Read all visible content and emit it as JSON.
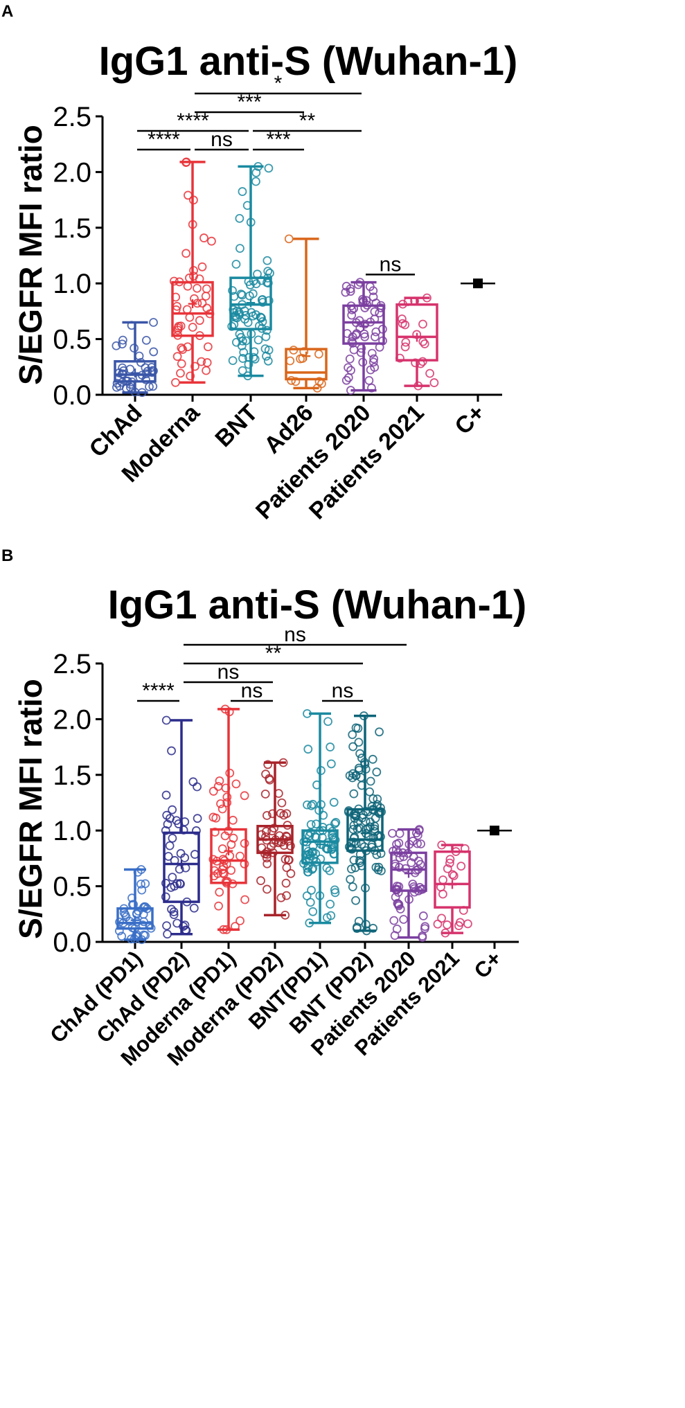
{
  "panels": [
    {
      "letter": "A",
      "title": "IgG1 anti-S (Wuhan-1)"
    },
    {
      "letter": "B",
      "title": "IgG1 anti-S (Wuhan-1)"
    }
  ],
  "chart_data": [
    {
      "type": "box",
      "title": "IgG1 anti-S (Wuhan-1)",
      "ylabel": "S/EGFR MFI ratio",
      "xlabel": "",
      "ylim": [
        0,
        2.5
      ],
      "yticks": [
        "0.0",
        "0.5",
        "1.0",
        "1.5",
        "2.0",
        "2.5"
      ],
      "categories": [
        "ChAd",
        "Moderna",
        "BNT",
        "Ad26",
        "Patients 2020",
        "Patients 2021",
        "C+"
      ],
      "colors": [
        "#3a56a8",
        "#e8343a",
        "#1a8aa0",
        "#d9661b",
        "#7b3fa0",
        "#d6336c",
        "#000000"
      ],
      "boxes": [
        {
          "min": 0.02,
          "q1": 0.12,
          "median": 0.18,
          "q3": 0.3,
          "max": 0.65,
          "mean": 0.2,
          "n": 40
        },
        {
          "min": 0.11,
          "q1": 0.53,
          "median": 0.73,
          "q3": 1.01,
          "max": 2.09,
          "mean": 0.82,
          "n": 50
        },
        {
          "min": 0.17,
          "q1": 0.59,
          "median": 0.81,
          "q3": 1.05,
          "max": 2.05,
          "mean": 0.83,
          "n": 80
        },
        {
          "min": 0.06,
          "q1": 0.14,
          "median": 0.2,
          "q3": 0.41,
          "max": 1.4,
          "mean": 0.35,
          "n": 12
        },
        {
          "min": 0.04,
          "q1": 0.46,
          "median": 0.65,
          "q3": 0.8,
          "max": 1.01,
          "mean": 0.62,
          "n": 60
        },
        {
          "min": 0.08,
          "q1": 0.31,
          "median": 0.52,
          "q3": 0.81,
          "max": 0.87,
          "mean": 0.52,
          "n": 20
        },
        {
          "min": 1.0,
          "q1": 1.0,
          "median": 1.0,
          "q3": 1.0,
          "max": 1.0,
          "mean": 1.0,
          "n": 1
        }
      ],
      "significance": [
        {
          "from": 0,
          "to": 1,
          "label": "****",
          "level": 0
        },
        {
          "from": 1,
          "to": 2,
          "label": "ns",
          "level": 0
        },
        {
          "from": 2,
          "to": 3,
          "label": "***",
          "level": 0
        },
        {
          "from": 0,
          "to": 2,
          "label": "****",
          "level": 1
        },
        {
          "from": 2,
          "to": 4,
          "label": "**",
          "level": 1
        },
        {
          "from": 1,
          "to": 3,
          "label": "***",
          "level": 2
        },
        {
          "from": 1,
          "to": 4,
          "label": "*",
          "level": 3
        },
        {
          "from": 4,
          "to": 5,
          "label": "ns",
          "level": -1
        }
      ]
    },
    {
      "type": "box",
      "title": "IgG1 anti-S (Wuhan-1)",
      "ylabel": "S/EGFR MFI ratio",
      "xlabel": "",
      "ylim": [
        0,
        2.5
      ],
      "yticks": [
        "0.0",
        "0.5",
        "1.0",
        "1.5",
        "2.0",
        "2.5"
      ],
      "categories": [
        "ChAd (PD1)",
        "ChAd (PD2)",
        "Moderna (PD1)",
        "Moderna (PD2)",
        "BNT(PD1)",
        "BNT (PD2)",
        "Patients 2020",
        "Patients 2021",
        "C+"
      ],
      "colors": [
        "#3a6fc7",
        "#2c2c8c",
        "#e8343a",
        "#a8232a",
        "#1a8aa0",
        "#0e6478",
        "#7b3fa0",
        "#d6336c",
        "#000000"
      ],
      "boxes": [
        {
          "min": 0.02,
          "q1": 0.12,
          "median": 0.17,
          "q3": 0.3,
          "max": 0.65,
          "mean": 0.2,
          "n": 40
        },
        {
          "min": 0.07,
          "q1": 0.36,
          "median": 0.7,
          "q3": 0.98,
          "max": 1.99,
          "mean": 0.7,
          "n": 45
        },
        {
          "min": 0.11,
          "q1": 0.53,
          "median": 0.73,
          "q3": 1.01,
          "max": 2.09,
          "mean": 0.82,
          "n": 50
        },
        {
          "min": 0.24,
          "q1": 0.8,
          "median": 0.92,
          "q3": 1.04,
          "max": 1.61,
          "mean": 0.93,
          "n": 50
        },
        {
          "min": 0.17,
          "q1": 0.71,
          "median": 0.9,
          "q3": 1.0,
          "max": 2.05,
          "mean": 0.88,
          "n": 80
        },
        {
          "min": 0.1,
          "q1": 0.82,
          "median": 0.92,
          "q3": 1.19,
          "max": 2.03,
          "mean": 0.98,
          "n": 110
        },
        {
          "min": 0.04,
          "q1": 0.46,
          "median": 0.65,
          "q3": 0.8,
          "max": 1.01,
          "mean": 0.62,
          "n": 60
        },
        {
          "min": 0.08,
          "q1": 0.31,
          "median": 0.52,
          "q3": 0.81,
          "max": 0.87,
          "mean": 0.52,
          "n": 20
        },
        {
          "min": 1.0,
          "q1": 1.0,
          "median": 1.0,
          "q3": 1.0,
          "max": 1.0,
          "mean": 1.0,
          "n": 1
        }
      ],
      "significance": [
        {
          "from": 0,
          "to": 1,
          "label": "****",
          "level": 0
        },
        {
          "from": 2,
          "to": 3,
          "label": "ns",
          "level": 0
        },
        {
          "from": 4,
          "to": 5,
          "label": "ns",
          "level": 0
        },
        {
          "from": 1,
          "to": 3,
          "label": "ns",
          "level": 1
        },
        {
          "from": 1,
          "to": 5,
          "label": "**",
          "level": 2
        },
        {
          "from": 1,
          "to": 6,
          "label": "ns",
          "level": 3
        }
      ]
    }
  ]
}
